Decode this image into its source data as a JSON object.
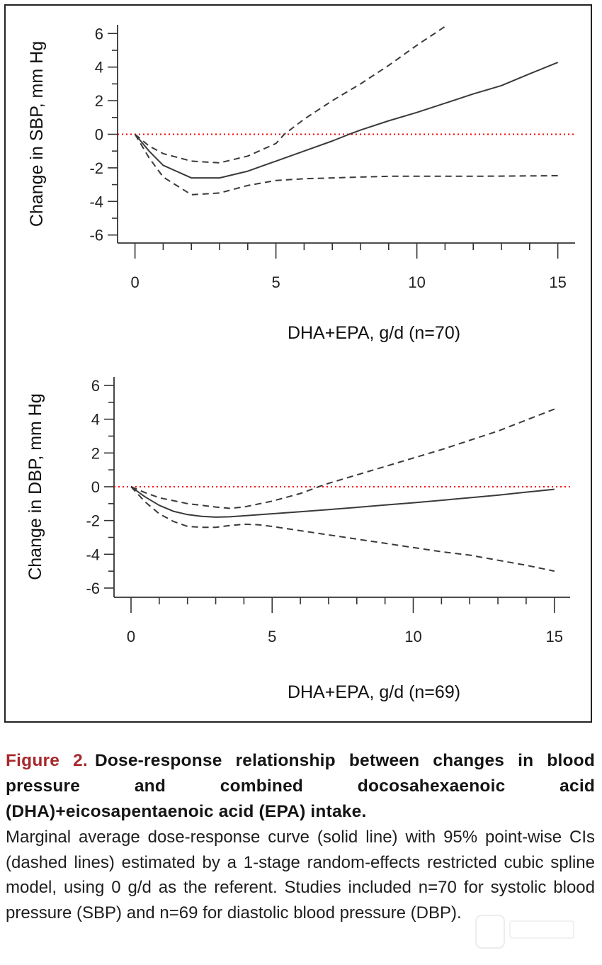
{
  "figure": {
    "label": "Figure 2.",
    "title": "Dose-response relationship between changes in blood pressure and combined docosahexaenoic acid (DHA)+eicosapentaenoic acid (EPA) intake.",
    "body": "Marginal average dose-response curve (solid line) with 95% point-wise CIs (dashed lines) estimated by a 1-stage random-effects restricted cubic spline model, using 0 g/d as the referent. Studies included n=70 for systolic blood pressure (SBP) and n=69 for diastolic blood pressure (DBP).",
    "colors": {
      "label": "#a8282b",
      "reference_line": "#ff0000",
      "curves": "#333333"
    }
  },
  "chart_data": [
    {
      "type": "line",
      "title": "",
      "xlabel": "DHA+EPA, g/d (n=70)",
      "ylabel": "Change in SBP, mm Hg",
      "xlim": [
        0,
        15
      ],
      "ylim": [
        -6,
        6
      ],
      "xticks": [
        0,
        5,
        10,
        15
      ],
      "yticks": [
        6,
        4,
        2,
        0,
        -2,
        -4,
        -6
      ],
      "grid": false,
      "reference_line": {
        "y": 0,
        "style": "dotted",
        "color": "#ff0000"
      },
      "series": [
        {
          "name": "Estimate",
          "style": "solid",
          "x": [
            0,
            0.5,
            1,
            2,
            3,
            4,
            5,
            6,
            7,
            7.6,
            8,
            9,
            10,
            11,
            12,
            13,
            14,
            15
          ],
          "y": [
            0,
            -1.0,
            -1.85,
            -2.6,
            -2.6,
            -2.2,
            -1.6,
            -1.0,
            -0.4,
            0,
            0.25,
            0.8,
            1.3,
            1.85,
            2.4,
            2.9,
            3.6,
            4.28
          ]
        },
        {
          "name": "Upper 95% CI",
          "style": "dashed",
          "x": [
            0,
            0.5,
            1,
            2,
            3,
            4,
            5,
            5.3,
            6,
            7,
            8,
            9,
            10,
            11.07
          ],
          "y": [
            0,
            -0.7,
            -1.15,
            -1.6,
            -1.7,
            -1.3,
            -0.55,
            0,
            0.9,
            2.0,
            3.0,
            4.1,
            5.3,
            6.5
          ]
        },
        {
          "name": "Lower 95% CI",
          "style": "dashed",
          "x": [
            0,
            0.5,
            1,
            2,
            3,
            4,
            5,
            6,
            7,
            8,
            9,
            10,
            12,
            15
          ],
          "y": [
            0,
            -1.4,
            -2.55,
            -3.6,
            -3.5,
            -3.05,
            -2.75,
            -2.65,
            -2.6,
            -2.55,
            -2.5,
            -2.5,
            -2.5,
            -2.47
          ]
        }
      ]
    },
    {
      "type": "line",
      "title": "",
      "xlabel": "DHA+EPA, g/d (n=69)",
      "ylabel": "Change in DBP, mm Hg",
      "xlim": [
        0,
        15
      ],
      "ylim": [
        -6,
        6
      ],
      "xticks": [
        0,
        5,
        10,
        15
      ],
      "yticks": [
        6,
        4,
        2,
        0,
        -2,
        -4,
        -6
      ],
      "grid": false,
      "reference_line": {
        "y": 0,
        "style": "dotted",
        "color": "#ff0000"
      },
      "series": [
        {
          "name": "Estimate",
          "style": "solid",
          "x": [
            0,
            0.5,
            1,
            1.5,
            2,
            2.5,
            3,
            3.5,
            4,
            5,
            6,
            7,
            8,
            9,
            10,
            11,
            12,
            13,
            14,
            15
          ],
          "y": [
            0,
            -0.6,
            -1.1,
            -1.45,
            -1.65,
            -1.75,
            -1.8,
            -1.78,
            -1.72,
            -1.6,
            -1.48,
            -1.35,
            -1.22,
            -1.08,
            -0.95,
            -0.8,
            -0.65,
            -0.5,
            -0.32,
            -0.15
          ]
        },
        {
          "name": "Upper 95% CI",
          "style": "dashed",
          "x": [
            0,
            0.5,
            1,
            2,
            3,
            3.5,
            4,
            5,
            6,
            6.65,
            7,
            8,
            9,
            10,
            11,
            12,
            13,
            14,
            15
          ],
          "y": [
            0,
            -0.35,
            -0.65,
            -1.0,
            -1.2,
            -1.28,
            -1.2,
            -0.85,
            -0.4,
            0,
            0.2,
            0.7,
            1.2,
            1.7,
            2.2,
            2.75,
            3.3,
            3.95,
            4.6
          ]
        },
        {
          "name": "Lower 95% CI",
          "style": "dashed",
          "x": [
            0,
            0.5,
            1,
            1.5,
            2,
            2.5,
            3,
            3.5,
            4,
            4.5,
            5,
            6,
            7,
            8,
            9,
            10,
            11,
            12,
            13,
            14,
            15
          ],
          "y": [
            0,
            -0.9,
            -1.6,
            -2.05,
            -2.35,
            -2.4,
            -2.4,
            -2.3,
            -2.22,
            -2.25,
            -2.35,
            -2.6,
            -2.85,
            -3.1,
            -3.35,
            -3.6,
            -3.85,
            -4.05,
            -4.35,
            -4.65,
            -5.0
          ]
        }
      ]
    }
  ]
}
